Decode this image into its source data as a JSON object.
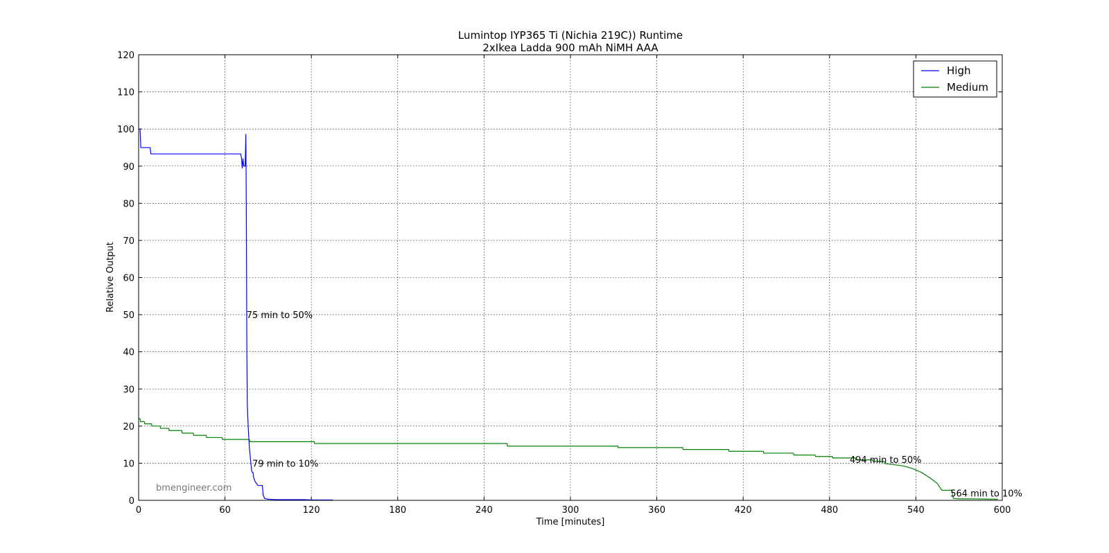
{
  "chart_data": {
    "type": "line",
    "title": "Lumintop IYP365 Ti (Nichia 219C)) Runtime",
    "subtitle": "2xIkea Ladda 900 mAh NiMH AAA",
    "xlabel": "Time [minutes]",
    "ylabel": "Relative Output",
    "xlim": [
      0,
      600
    ],
    "ylim": [
      0,
      120
    ],
    "xticks": [
      0,
      60,
      120,
      180,
      240,
      300,
      360,
      420,
      480,
      540,
      600
    ],
    "yticks": [
      0,
      10,
      20,
      30,
      40,
      50,
      60,
      70,
      80,
      90,
      100,
      110,
      120
    ],
    "grid": true,
    "legend_position": "top-right",
    "watermark": "bmengineer.com",
    "series": [
      {
        "name": "High",
        "color": "#0000ff",
        "points": [
          [
            0,
            100
          ],
          [
            1,
            100
          ],
          [
            1.5,
            95
          ],
          [
            8,
            95
          ],
          [
            8.5,
            93.3
          ],
          [
            71,
            93.3
          ],
          [
            71.5,
            92
          ],
          [
            72,
            89.5
          ],
          [
            72.5,
            92
          ],
          [
            73,
            90
          ],
          [
            74,
            90
          ],
          [
            74.5,
            98.6
          ],
          [
            74.8,
            80
          ],
          [
            75,
            60
          ],
          [
            75.2,
            40
          ],
          [
            75.5,
            26
          ],
          [
            76,
            21
          ],
          [
            76.5,
            17
          ],
          [
            77,
            14
          ],
          [
            77.5,
            12
          ],
          [
            78,
            10
          ],
          [
            78.5,
            8
          ],
          [
            79,
            7.5
          ],
          [
            79.5,
            7.5
          ],
          [
            80,
            6
          ],
          [
            81,
            5
          ],
          [
            83,
            4
          ],
          [
            86,
            4
          ],
          [
            86.5,
            1.5
          ],
          [
            87.5,
            0.5
          ],
          [
            90,
            0.3
          ],
          [
            95,
            0.2
          ],
          [
            110,
            0.2
          ],
          [
            115,
            0.2
          ],
          [
            120,
            0.1
          ],
          [
            135,
            0.1
          ]
        ]
      },
      {
        "name": "Medium",
        "color": "#008000",
        "points": [
          [
            0,
            22
          ],
          [
            1,
            22
          ],
          [
            1.2,
            21.2
          ],
          [
            4,
            21.2
          ],
          [
            4.2,
            20.6
          ],
          [
            9,
            20.6
          ],
          [
            9.2,
            20
          ],
          [
            15,
            20
          ],
          [
            15.2,
            19.4
          ],
          [
            21,
            19.4
          ],
          [
            21.2,
            18.8
          ],
          [
            30,
            18.8
          ],
          [
            30.2,
            18.1
          ],
          [
            38,
            18.1
          ],
          [
            38.2,
            17.5
          ],
          [
            47,
            17.5
          ],
          [
            47.2,
            16.9
          ],
          [
            58,
            16.9
          ],
          [
            58.2,
            16.4
          ],
          [
            77,
            16.4
          ],
          [
            77.2,
            15.8
          ],
          [
            122,
            15.8
          ],
          [
            122.2,
            15.3
          ],
          [
            256,
            15.3
          ],
          [
            256.2,
            14.6
          ],
          [
            333,
            14.6
          ],
          [
            333.2,
            14.2
          ],
          [
            378,
            14.2
          ],
          [
            378.2,
            13.7
          ],
          [
            410,
            13.7
          ],
          [
            410.2,
            13.2
          ],
          [
            434,
            13.2
          ],
          [
            434.2,
            12.7
          ],
          [
            455,
            12.7
          ],
          [
            455.2,
            12.2
          ],
          [
            470,
            12.2
          ],
          [
            470.2,
            11.8
          ],
          [
            482,
            11.8
          ],
          [
            482.2,
            11.4
          ],
          [
            498,
            11.4
          ],
          [
            498.2,
            10.9
          ],
          [
            510,
            10.9
          ],
          [
            510.2,
            10.5
          ],
          [
            518,
            10.5
          ],
          [
            518.2,
            9.9
          ],
          [
            525,
            9.6
          ],
          [
            532,
            9.2
          ],
          [
            538,
            8.5
          ],
          [
            544,
            7.5
          ],
          [
            550,
            6
          ],
          [
            555,
            4.5
          ],
          [
            558,
            2.7
          ],
          [
            565,
            2.7
          ],
          [
            565.5,
            1.5
          ],
          [
            566,
            0.5
          ],
          [
            570,
            0.4
          ],
          [
            580,
            0.4
          ],
          [
            595,
            0.3
          ],
          [
            597,
            0.3
          ]
        ]
      }
    ],
    "annotations": [
      {
        "text": "75 min to 50%",
        "x": 75,
        "y": 50
      },
      {
        "text": "79 min to 10%",
        "x": 79,
        "y": 10
      },
      {
        "text": "494 min to 50%",
        "x": 494,
        "y": 11
      },
      {
        "text": "564 min to 10%",
        "x": 564,
        "y": 2
      }
    ]
  }
}
